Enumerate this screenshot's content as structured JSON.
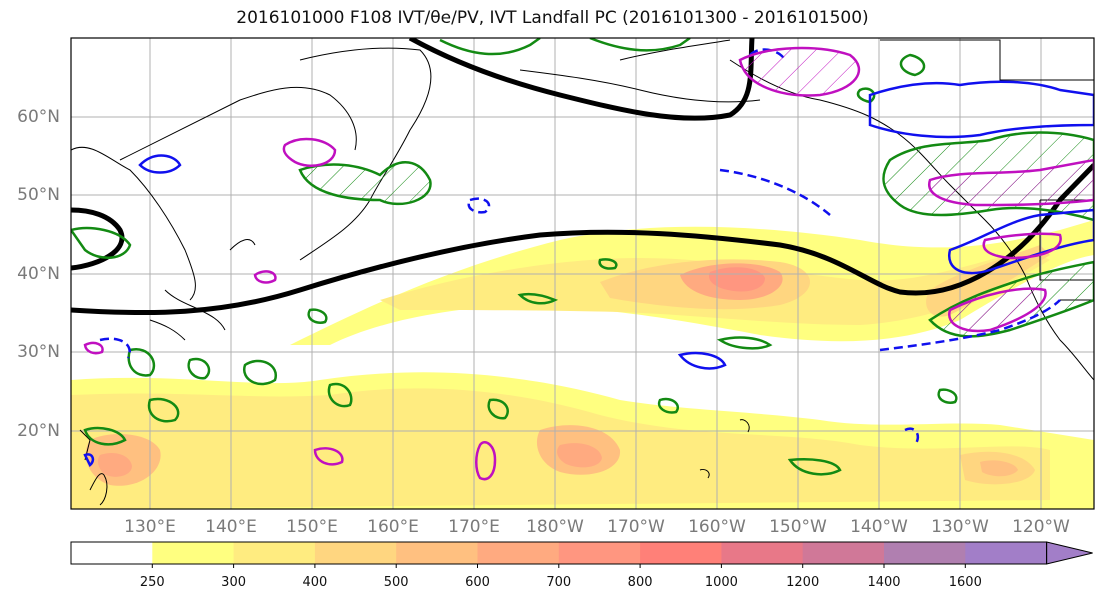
{
  "title": "2016101000 F108 IVT/θe/PV, IVT Landfall PC (2016101300 - 2016101500)",
  "map": {
    "lat_labels": [
      "60°N",
      "50°N",
      "40°N",
      "30°N",
      "20°N"
    ],
    "lon_labels": [
      "130°E",
      "140°E",
      "150°E",
      "160°E",
      "170°E",
      "180°W",
      "170°W",
      "160°W",
      "150°W",
      "140°W",
      "130°W",
      "120°W"
    ],
    "colors": {
      "coast": "#000000",
      "theta_e_contour": "#000000",
      "pv_contour_green": "#138a13",
      "contour_blue": "#1010ee",
      "contour_magenta": "#c010c0",
      "grid": "#b0b0b0"
    }
  },
  "colorbar": {
    "levels": [
      "250",
      "300",
      "400",
      "500",
      "600",
      "700",
      "800",
      "1000",
      "1200",
      "1400",
      "1600"
    ],
    "colors": [
      "#ffffff",
      "#ffff80",
      "#ffec80",
      "#ffd680",
      "#ffc080",
      "#ffaa80",
      "#ff9680",
      "#ff8078",
      "#e87888",
      "#d07898",
      "#b07fb0",
      "#a27ec8"
    ],
    "extend": "max"
  }
}
